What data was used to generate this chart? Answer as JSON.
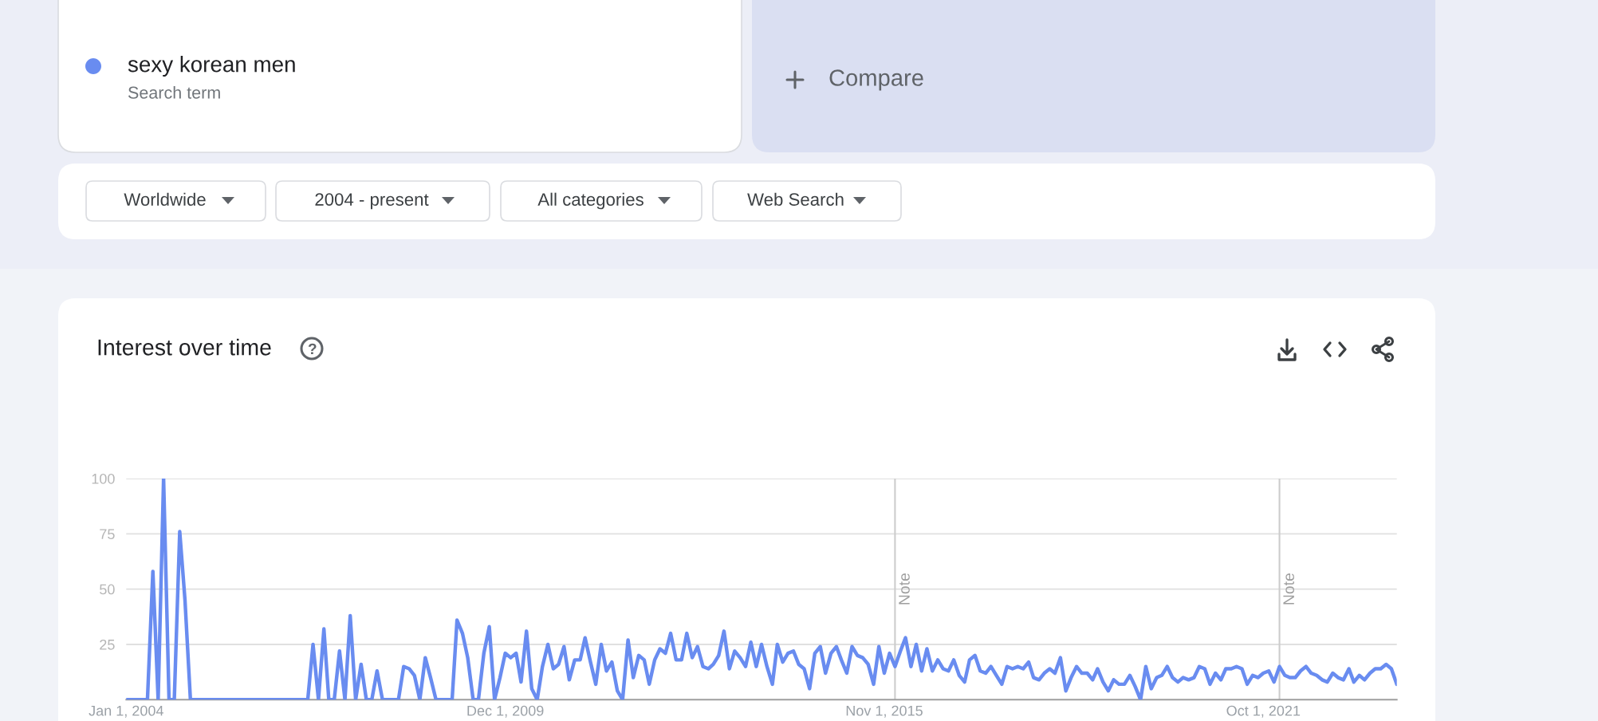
{
  "chart_data": {
    "type": "line",
    "title": "Interest over time",
    "annotations": [
      "Search term",
      "Compare",
      "Worldwide",
      "2004 - present",
      "All categories",
      "Web Search"
    ],
    "legend": "top left",
    "grid": "y",
    "x": [
      "2004-01",
      "2004-02",
      "2004-03",
      "2004-04",
      "2004-05",
      "2004-06",
      "2004-07",
      "2004-08",
      "2004-09",
      "2004-10",
      "2004-11",
      "2004-12",
      "2005-01",
      "2005-02",
      "2005-03",
      "2005-04",
      "2005-05",
      "2005-06",
      "2005-07",
      "2005-08",
      "2005-09",
      "2005-10",
      "2005-11",
      "2005-12",
      "2006-01",
      "2006-02",
      "2006-03",
      "2006-04",
      "2006-05",
      "2006-06",
      "2006-07",
      "2006-08",
      "2006-09",
      "2006-10",
      "2006-11",
      "2006-12",
      "2007-01",
      "2007-02",
      "2007-03",
      "2007-04",
      "2007-05",
      "2007-06",
      "2007-07",
      "2007-08",
      "2007-09",
      "2007-10",
      "2007-11",
      "2007-12",
      "2008-01",
      "2008-02",
      "2008-03",
      "2008-04",
      "2008-05",
      "2008-06",
      "2008-07",
      "2008-08",
      "2008-09",
      "2008-10",
      "2008-11",
      "2008-12",
      "2009-01",
      "2009-02",
      "2009-03",
      "2009-04",
      "2009-05",
      "2009-06",
      "2009-07",
      "2009-08",
      "2009-09",
      "2009-10",
      "2009-11",
      "2009-12",
      "2010-01",
      "2010-02",
      "2010-03",
      "2010-04",
      "2010-05",
      "2010-06",
      "2010-07",
      "2010-08",
      "2010-09",
      "2010-10",
      "2010-11",
      "2010-12",
      "2011-01",
      "2011-02",
      "2011-03",
      "2011-04",
      "2011-05",
      "2011-06",
      "2011-07",
      "2011-08",
      "2011-09",
      "2011-10",
      "2011-11",
      "2011-12",
      "2012-01",
      "2012-02",
      "2012-03",
      "2012-04",
      "2012-05",
      "2012-06",
      "2012-07",
      "2012-08",
      "2012-09",
      "2012-10",
      "2012-11",
      "2012-12",
      "2013-01",
      "2013-02",
      "2013-03",
      "2013-04",
      "2013-05",
      "2013-06",
      "2013-07",
      "2013-08",
      "2013-09",
      "2013-10",
      "2013-11",
      "2013-12",
      "2014-01",
      "2014-02",
      "2014-03",
      "2014-04",
      "2014-05",
      "2014-06",
      "2014-07",
      "2014-08",
      "2014-09",
      "2014-10",
      "2014-11",
      "2014-12",
      "2015-01",
      "2015-02",
      "2015-03",
      "2015-04",
      "2015-05",
      "2015-06",
      "2015-07",
      "2015-08",
      "2015-09",
      "2015-10",
      "2015-11",
      "2015-12",
      "2016-01",
      "2016-02",
      "2016-03",
      "2016-04",
      "2016-05",
      "2016-06",
      "2016-07",
      "2016-08",
      "2016-09",
      "2016-10",
      "2016-11",
      "2016-12",
      "2017-01",
      "2017-02",
      "2017-03",
      "2017-04",
      "2017-05",
      "2017-06",
      "2017-07",
      "2017-08",
      "2017-09",
      "2017-10",
      "2017-11",
      "2017-12",
      "2018-01",
      "2018-02",
      "2018-03",
      "2018-04",
      "2018-05",
      "2018-06",
      "2018-07",
      "2018-08",
      "2018-09",
      "2018-10",
      "2018-11",
      "2018-12",
      "2019-01",
      "2019-02",
      "2019-03",
      "2019-04",
      "2019-05",
      "2019-06",
      "2019-07",
      "2019-08",
      "2019-09",
      "2019-10",
      "2019-11",
      "2019-12",
      "2020-01",
      "2020-02",
      "2020-03",
      "2020-04",
      "2020-05",
      "2020-06",
      "2020-07",
      "2020-08",
      "2020-09",
      "2020-10",
      "2020-11",
      "2020-12",
      "2021-01",
      "2021-02",
      "2021-03",
      "2021-04",
      "2021-05",
      "2021-06",
      "2021-07",
      "2021-08",
      "2021-09",
      "2021-10",
      "2021-11",
      "2021-12",
      "2022-01",
      "2022-02",
      "2022-03",
      "2022-04",
      "2022-05",
      "2022-06",
      "2022-07",
      "2022-08",
      "2022-09",
      "2022-10",
      "2022-11",
      "2022-12",
      "2023-01",
      "2023-02",
      "2023-03",
      "2023-04",
      "2023-05",
      "2023-06",
      "2023-07",
      "2023-08",
      "2023-09",
      "2023-10",
      "2023-11"
    ],
    "series": [
      {
        "name": "sexy korean men",
        "color": "#698cf0",
        "values": [
          0,
          0,
          0,
          0,
          0,
          58,
          0,
          100,
          0,
          0,
          76,
          45,
          0,
          0,
          0,
          0,
          0,
          0,
          0,
          0,
          0,
          0,
          0,
          0,
          0,
          0,
          0,
          0,
          0,
          0,
          0,
          0,
          0,
          0,
          0,
          25,
          0,
          32,
          0,
          0,
          22,
          0,
          38,
          0,
          16,
          0,
          0,
          13,
          0,
          0,
          0,
          0,
          15,
          14,
          11,
          0,
          19,
          10,
          0,
          0,
          0,
          0,
          36,
          30,
          19,
          0,
          0,
          21,
          33,
          0,
          10,
          21,
          19,
          21,
          8,
          31,
          5,
          0,
          15,
          25,
          14,
          16,
          24,
          9,
          18,
          18,
          28,
          17,
          7,
          25,
          13,
          17,
          4,
          0,
          27,
          10,
          20,
          18,
          7,
          18,
          23,
          21,
          30,
          18,
          18,
          30,
          19,
          24,
          15,
          14,
          16,
          20,
          31,
          14,
          22,
          19,
          15,
          26,
          15,
          25,
          15,
          7,
          25,
          17,
          21,
          22,
          16,
          14,
          5,
          21,
          24,
          12,
          21,
          24,
          18,
          12,
          24,
          20,
          19,
          16,
          7,
          24,
          12,
          21,
          15,
          22,
          28,
          15,
          25,
          13,
          23,
          13,
          18,
          14,
          13,
          18,
          11,
          8,
          18,
          20,
          13,
          12,
          15,
          11,
          7,
          15,
          14,
          15,
          14,
          17,
          10,
          9,
          12,
          14,
          12,
          19,
          4,
          10,
          15,
          12,
          12,
          9,
          14,
          8,
          4,
          9,
          7,
          7,
          11,
          6,
          0,
          15,
          5,
          10,
          11,
          15,
          10,
          8,
          10,
          9,
          10,
          15,
          14,
          7,
          12,
          9,
          14,
          14,
          15,
          14,
          7,
          11,
          10,
          12,
          13,
          8,
          15,
          11,
          10,
          10,
          13,
          15,
          12,
          11,
          9,
          8,
          12,
          10,
          9,
          14,
          8,
          11,
          9,
          12,
          14,
          14,
          16,
          14,
          7
        ]
      }
    ],
    "xlim": [
      "2004-01",
      "2023-11"
    ],
    "ylim": [
      0,
      100
    ],
    "xticks": [
      {
        "value": "2004-01-01",
        "label": "Jan 1, 2004"
      },
      {
        "value": "2009-12-01",
        "label": "Dec 1, 2009"
      },
      {
        "value": "2015-11-01",
        "label": "Nov 1, 2015"
      },
      {
        "value": "2021-10-01",
        "label": "Oct 1, 2021"
      }
    ],
    "yticks": [
      25,
      50,
      75,
      100
    ],
    "ref_lines": [
      {
        "axis": "x",
        "value": "2016-01-01",
        "label": "Note",
        "color": "#cccccc"
      },
      {
        "axis": "x",
        "value": "2022-01-01",
        "label": "Note",
        "color": "#cccccc"
      }
    ]
  }
}
